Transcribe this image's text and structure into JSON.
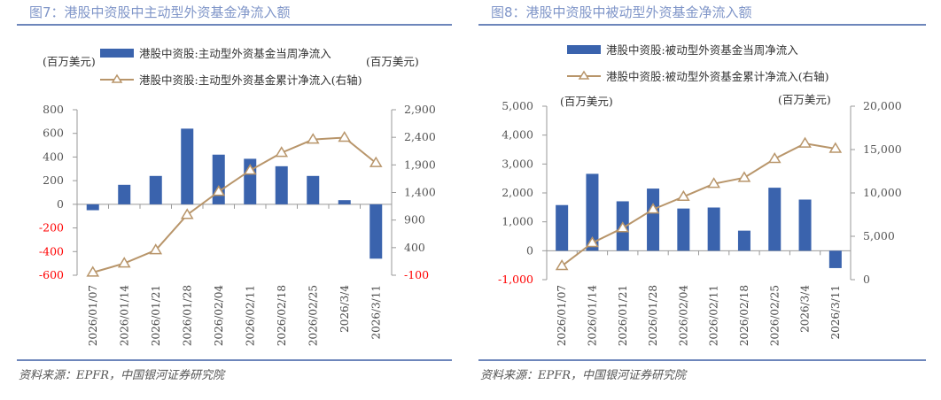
{
  "colors": {
    "bar": "#3a63ad",
    "line": "#b8956a",
    "title": "#7f95c8",
    "rule": "#6d86bb",
    "negative_tick": "#ff0000",
    "tick": "#555555"
  },
  "chart_data": [
    {
      "type": "bar+line",
      "title": "图7：港股中资股中主动型外资基金净流入额",
      "source": "资料来源：EPFR，中国银河证券研究院",
      "left_unit": "(百万美元)",
      "right_unit": "(百万美元)",
      "categories": [
        "2026/01/07",
        "2026/01/14",
        "2026/01/21",
        "2026/01/28",
        "2026/02/04",
        "2026/02/11",
        "2026/02/18",
        "2026/02/25",
        "2026/3/4",
        "2026/3/11"
      ],
      "series": [
        {
          "name": "港股中资股:主动型外资基金当周净流入",
          "type": "bar",
          "axis": "left",
          "values": [
            -50,
            165,
            240,
            640,
            420,
            385,
            322,
            240,
            35,
            -460
          ]
        },
        {
          "name": "港股中资股:主动型外资基金累计净流入(右轴)",
          "type": "line",
          "axis": "right",
          "values": [
            -50,
            115,
            355,
            995,
            1415,
            1800,
            2120,
            2360,
            2395,
            1935
          ]
        }
      ],
      "ylim_left": [
        -600,
        800
      ],
      "yticks_left": [
        800,
        600,
        400,
        200,
        0,
        -200,
        -400,
        -600
      ],
      "yticks_left_labels": [
        "800",
        "600",
        "400",
        "200",
        "0",
        "-200",
        "-400",
        "-600"
      ],
      "ylim_right": [
        -100,
        2900
      ],
      "yticks_right": [
        2900,
        2400,
        1900,
        1400,
        900,
        400,
        -100
      ],
      "yticks_right_labels": [
        "2,900",
        "2,400",
        "1,900",
        "1,400",
        "900",
        "400",
        "-100"
      ],
      "grid": false,
      "legend": "top"
    },
    {
      "type": "bar+line",
      "title": "图8：港股中资股中被动型外资基金净流入额",
      "source": "资料来源：EPFR，中国银河证券研究院",
      "left_unit": "(百万美元)",
      "right_unit": "(百万美元)",
      "categories": [
        "2026/01/07",
        "2026/01/14",
        "2026/01/21",
        "2026/01/28",
        "2026/02/04",
        "2026/02/11",
        "2026/02/18",
        "2026/02/25",
        "2026/3/4",
        "2026/3/11"
      ],
      "series": [
        {
          "name": "港股中资股:被动型外资基金当周净流入",
          "type": "bar",
          "axis": "left",
          "values": [
            1580,
            2660,
            1710,
            2150,
            1460,
            1495,
            695,
            2180,
            1770,
            -600
          ]
        },
        {
          "name": "港股中资股:被动型外资基金累计净流入(右轴)",
          "type": "line",
          "axis": "right",
          "values": [
            1580,
            4240,
            5950,
            8100,
            9560,
            11055,
            11750,
            13930,
            15700,
            15100
          ]
        }
      ],
      "ylim_left": [
        -1000,
        5000
      ],
      "yticks_left": [
        5000,
        4000,
        3000,
        2000,
        1000,
        0,
        -1000
      ],
      "yticks_left_labels": [
        "5,000",
        "4,000",
        "3,000",
        "2,000",
        "1,000",
        "0",
        "-1,000"
      ],
      "ylim_right": [
        0,
        20000
      ],
      "yticks_right": [
        20000,
        15000,
        10000,
        5000,
        0
      ],
      "yticks_right_labels": [
        "20,000",
        "15,000",
        "10,000",
        "5,000",
        "0"
      ],
      "grid": false,
      "legend": "top"
    }
  ]
}
